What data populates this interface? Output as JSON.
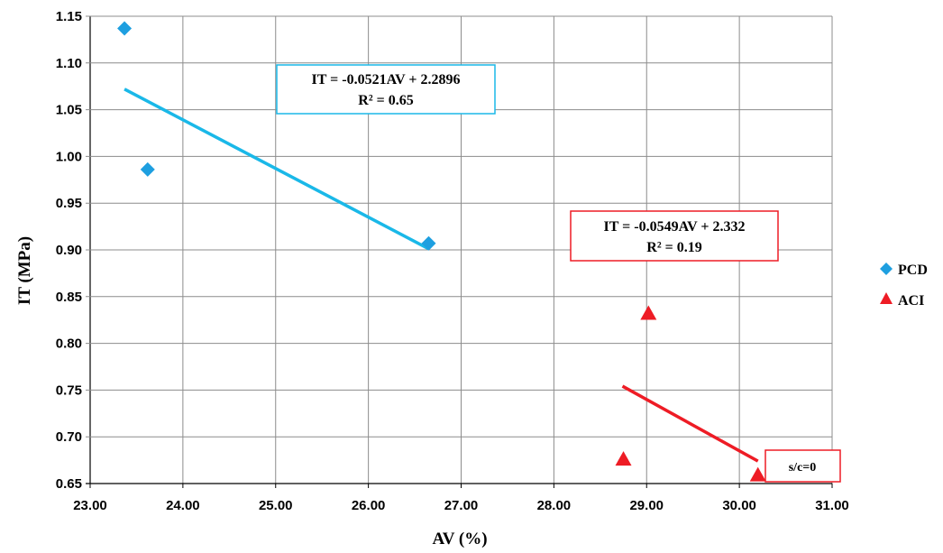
{
  "chart_data": {
    "type": "scatter",
    "xlabel": "AV (%)",
    "ylabel": "IT (MPa)",
    "xlim": [
      23.0,
      31.0
    ],
    "ylim": [
      0.65,
      1.15
    ],
    "xticks": [
      "23.00",
      "24.00",
      "25.00",
      "26.00",
      "27.00",
      "28.00",
      "29.00",
      "30.00",
      "31.00"
    ],
    "yticks": [
      "0.65",
      "0.70",
      "0.75",
      "0.80",
      "0.85",
      "0.90",
      "0.95",
      "1.00",
      "1.05",
      "1.10",
      "1.15"
    ],
    "grid": true,
    "legend_position": "right",
    "series": [
      {
        "name": "PCD",
        "marker": "diamond",
        "color": "#1e9fe0",
        "line_color": "#1ab8e8",
        "points": [
          [
            23.37,
            1.137
          ],
          [
            23.62,
            0.986
          ],
          [
            26.65,
            0.907
          ]
        ],
        "trendline": {
          "x": [
            23.37,
            26.65
          ],
          "slope": -0.0521,
          "intercept": 2.2896
        }
      },
      {
        "name": "ACI",
        "marker": "triangle",
        "color": "#ee1c25",
        "line_color": "#ee1c25",
        "points": [
          [
            29.02,
            0.832
          ],
          [
            28.75,
            0.676
          ],
          [
            30.2,
            0.659
          ]
        ],
        "trendline": {
          "x": [
            28.74,
            30.2
          ],
          "slope": -0.0549,
          "intercept": 2.332
        }
      }
    ],
    "annotations": [
      {
        "lines": [
          "IT = -0.0521AV + 2.2896",
          "R² = 0.65"
        ],
        "border_color": "#1ab8e8"
      },
      {
        "lines": [
          "IT = -0.0549AV + 2.332",
          "R² = 0.19"
        ],
        "border_color": "#ee1c25"
      },
      {
        "lines": [
          "s/c=0"
        ],
        "border_color": "#ee1c25"
      }
    ]
  }
}
